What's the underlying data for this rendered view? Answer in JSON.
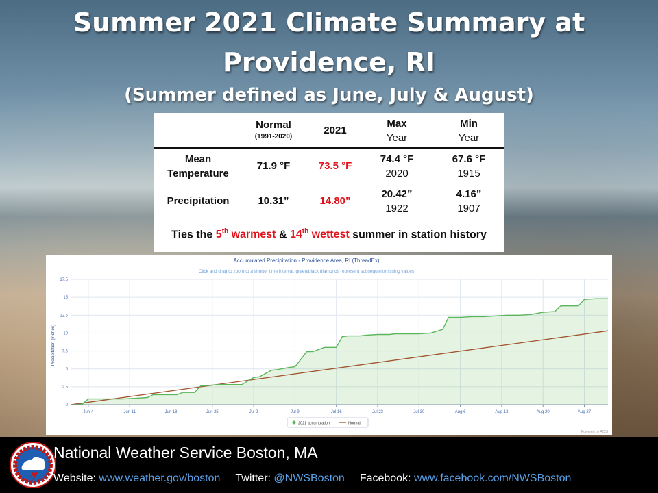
{
  "title": {
    "line1": "Summer 2021 Climate Summary at",
    "line2": "Providence, RI",
    "line3": "(Summer defined as June, July & August)"
  },
  "table": {
    "headers": {
      "normal": "Normal",
      "normal_sub": "(1991-2020)",
      "year2021": "2021",
      "max": "Max",
      "max_sub": "Year",
      "min": "Min",
      "min_sub": "Year"
    },
    "rows": [
      {
        "label_line1": "Mean",
        "label_line2": "Temperature",
        "normal": "71.9 °F",
        "year2021": "73.5 °F",
        "max": "74.4 °F",
        "max_year": "2020",
        "min": "67.6 °F",
        "min_year": "1915"
      },
      {
        "label_line1": "Precipitation",
        "normal": "10.31”",
        "year2021": "14.80”",
        "max": "20.42”",
        "max_year": "1922",
        "min": "4.16”",
        "min_year": "1907"
      }
    ],
    "ties": {
      "prefix": "Ties the ",
      "rank1_num": "5",
      "rank1_sup": "th",
      "rank1_word": " warmest",
      "amp": " & ",
      "rank2_num": "14",
      "rank2_sup": "th",
      "rank2_word": " wettest",
      "suffix": " summer in station history"
    }
  },
  "chart_data": {
    "type": "area",
    "title": "Accumulated Precipitation - Providence Area, RI (ThreadEx)",
    "subtitle": "Click and drag to zoom to a shorter time interval; green/black diamonds represent subsequent/missing values",
    "ylabel": "Precipitation (inches)",
    "xlabel": "",
    "ylim": [
      0,
      17.5
    ],
    "yticks": [
      0,
      2.5,
      5,
      7.5,
      10,
      12.5,
      15,
      17.5
    ],
    "xlim": [
      "2021-06-01",
      "2021-08-31"
    ],
    "xticks": [
      "Jun 4",
      "Jun 11",
      "Jun 18",
      "Jun 25",
      "Jul 2",
      "Jul 9",
      "Jul 16",
      "Jul 23",
      "Jul 30",
      "Aug 6",
      "Aug 13",
      "Aug 20",
      "Aug 27"
    ],
    "grid": true,
    "legend": "bottom-center",
    "credit": "Powered by ACIS",
    "series": [
      {
        "name": "2021 accumulation",
        "color": "#5bb55b",
        "x": [
          "2021-06-01",
          "2021-06-02",
          "2021-06-03",
          "2021-06-04",
          "2021-06-06",
          "2021-06-08",
          "2021-06-10",
          "2021-06-12",
          "2021-06-14",
          "2021-06-15",
          "2021-06-17",
          "2021-06-19",
          "2021-06-20",
          "2021-06-22",
          "2021-06-23",
          "2021-06-26",
          "2021-06-28",
          "2021-06-30",
          "2021-07-02",
          "2021-07-03",
          "2021-07-05",
          "2021-07-06",
          "2021-07-08",
          "2021-07-09",
          "2021-07-11",
          "2021-07-12",
          "2021-07-14",
          "2021-07-16",
          "2021-07-17",
          "2021-07-18",
          "2021-07-20",
          "2021-07-21",
          "2021-07-23",
          "2021-07-25",
          "2021-07-26",
          "2021-07-28",
          "2021-07-30",
          "2021-08-01",
          "2021-08-03",
          "2021-08-04",
          "2021-08-06",
          "2021-08-08",
          "2021-08-10",
          "2021-08-12",
          "2021-08-14",
          "2021-08-16",
          "2021-08-18",
          "2021-08-20",
          "2021-08-22",
          "2021-08-23",
          "2021-08-26",
          "2021-08-27",
          "2021-08-29",
          "2021-08-31"
        ],
        "values": [
          0.0,
          0.0,
          0.1,
          0.8,
          0.8,
          0.8,
          0.8,
          0.9,
          1.0,
          1.4,
          1.4,
          1.4,
          1.7,
          1.7,
          2.6,
          2.8,
          2.8,
          2.8,
          3.8,
          3.9,
          4.8,
          4.9,
          5.2,
          5.3,
          7.4,
          7.4,
          8.0,
          8.0,
          9.5,
          9.6,
          9.6,
          9.7,
          9.8,
          9.8,
          9.9,
          9.9,
          9.9,
          10.0,
          10.5,
          12.2,
          12.2,
          12.3,
          12.3,
          12.4,
          12.5,
          12.5,
          12.6,
          12.9,
          13.0,
          13.8,
          13.8,
          14.7,
          14.8,
          14.8
        ]
      },
      {
        "name": "Normal",
        "color": "#a0522d",
        "x": [
          "2021-06-01",
          "2021-08-31"
        ],
        "values": [
          0.0,
          10.31
        ]
      }
    ]
  },
  "footer": {
    "title": "National Weather Service Boston, MA",
    "website_label": "Website: ",
    "website": "www.weather.gov/boston",
    "twitter_label": "Twitter: ",
    "twitter": "@NWSBoston",
    "facebook_label": "Facebook: ",
    "facebook": "www.facebook.com/NWSBoston",
    "logo_text": "NATIONAL WEATHER SERVICE"
  },
  "colors": {
    "highlight_red": "#e0121c",
    "link_blue": "#5aa0e6",
    "accum_green": "#5bb55b",
    "normal_brown": "#a0522d"
  },
  "icons": {
    "logo": "nws-logo-icon"
  }
}
